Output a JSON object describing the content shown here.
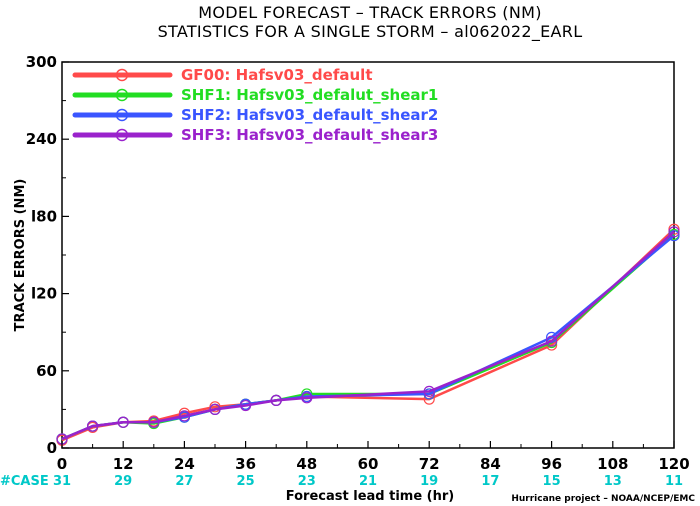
{
  "title_line1": "MODEL FORECAST – TRACK ERRORS (NM)",
  "title_line2": "STATISTICS FOR A SINGLE STORM – al062022_EARL",
  "credit": "Hurricane project – NOAA/NCEP/EMC",
  "case_label": "#CASE",
  "colors": {
    "case_text": "#00c8c8"
  },
  "chart_data": {
    "type": "line",
    "xlabel": "Forecast lead time (hr)",
    "ylabel": "TRACK ERRORS (NM)",
    "xlim": [
      0,
      120
    ],
    "ylim": [
      0,
      300
    ],
    "x_ticks": [
      0,
      12,
      24,
      36,
      48,
      60,
      72,
      84,
      96,
      108,
      120
    ],
    "y_ticks": [
      0,
      60,
      120,
      180,
      240,
      300
    ],
    "x_tick_labels": [
      "0",
      "12",
      "24",
      "36",
      "48",
      "60",
      "72",
      "84",
      "96",
      "108",
      "120"
    ],
    "y_tick_labels": [
      "0",
      "60",
      "l20",
      "l80",
      "240",
      "300"
    ],
    "case_counts": [
      31,
      29,
      27,
      25,
      23,
      21,
      19,
      17,
      15,
      13,
      11
    ],
    "case_count_labels": [
      "31",
      "29",
      "27",
      "25",
      "23",
      "21",
      "19",
      "17",
      "15",
      "13",
      "11"
    ],
    "grid": false,
    "legend_position": "top-left",
    "x": [
      0,
      6,
      12,
      18,
      24,
      30,
      36,
      42,
      48,
      72,
      96,
      120
    ],
    "series": [
      {
        "name": "GF00: Hafsv03_default",
        "color": "#ff4a4a",
        "values": [
          6,
          16,
          20,
          21,
          27,
          32,
          34,
          37,
          40,
          38,
          80,
          170
        ]
      },
      {
        "name": "SHF1: Hafsv03_defalut_shear1",
        "color": "#22dd22",
        "values": [
          7,
          17,
          20,
          19,
          24,
          30,
          34,
          37,
          42,
          42,
          82,
          166
        ]
      },
      {
        "name": "SHF2: Hafsv03_default_shear2",
        "color": "#3a55ff",
        "values": [
          7,
          17,
          20,
          20,
          24,
          30,
          34,
          37,
          40,
          42,
          86,
          165
        ]
      },
      {
        "name": "SHF3: Hafsv03_default_shear3",
        "color": "#9a22cc",
        "values": [
          7,
          17,
          20,
          20,
          25,
          30,
          33,
          37,
          39,
          44,
          83,
          168
        ]
      }
    ]
  }
}
